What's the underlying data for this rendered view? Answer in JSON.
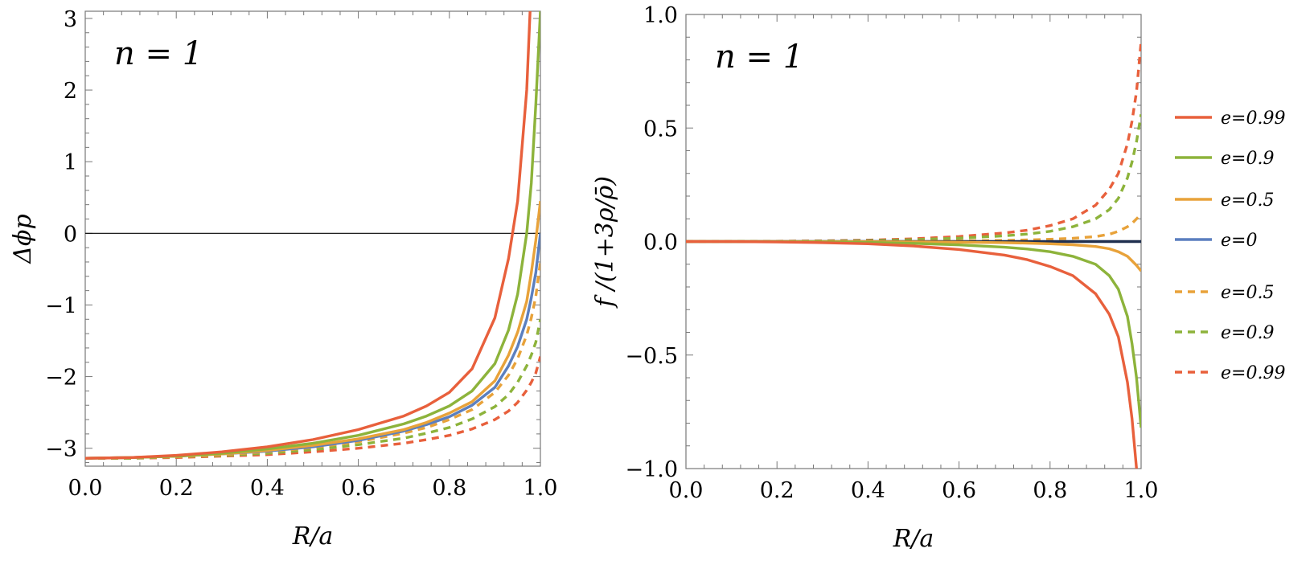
{
  "chart_data": [
    {
      "type": "line",
      "panel": "left",
      "annotation": "n = 1",
      "xlabel": "R/a",
      "ylabel": "Δϕp",
      "xlim": [
        0,
        1
      ],
      "ylim": [
        -3.25,
        3.1
      ],
      "x_ticks": [
        0,
        0.2,
        0.4,
        0.6,
        0.8,
        1.0
      ],
      "x_tick_labels": [
        "0.0",
        "0.2",
        "0.4",
        "0.6",
        "0.8",
        "1.0"
      ],
      "y_ticks": [
        -3,
        -2,
        -1,
        0,
        1,
        2,
        3
      ],
      "y_tick_labels": [
        "−3",
        "−2",
        "−1",
        "0",
        "1",
        "2",
        "3"
      ],
      "zero_line": true,
      "x": [
        0,
        0.1,
        0.2,
        0.3,
        0.4,
        0.5,
        0.6,
        0.7,
        0.75,
        0.8,
        0.85,
        0.9,
        0.93,
        0.95,
        0.97,
        0.98,
        0.99,
        1.0
      ],
      "series": [
        {
          "name": "e=0.99",
          "style": "solid",
          "color": "#e8603c",
          "values": [
            -3.14,
            -3.13,
            -3.1,
            -3.05,
            -2.98,
            -2.88,
            -2.74,
            -2.55,
            -2.41,
            -2.22,
            -1.89,
            -1.18,
            -0.35,
            0.45,
            2.0,
            3.5,
            null,
            null
          ]
        },
        {
          "name": "e=0.9",
          "style": "solid",
          "color": "#8db33b",
          "values": [
            -3.14,
            -3.13,
            -3.11,
            -3.07,
            -3.01,
            -2.93,
            -2.82,
            -2.66,
            -2.55,
            -2.41,
            -2.2,
            -1.82,
            -1.35,
            -0.85,
            0.0,
            0.7,
            1.8,
            3.1
          ]
        },
        {
          "name": "e=0.5",
          "style": "solid",
          "color": "#e8a23a",
          "values": [
            -3.14,
            -3.13,
            -3.11,
            -3.08,
            -3.03,
            -2.96,
            -2.87,
            -2.74,
            -2.64,
            -2.51,
            -2.35,
            -2.06,
            -1.7,
            -1.38,
            -0.95,
            -0.55,
            -0.1,
            0.45
          ]
        },
        {
          "name": "e=0",
          "style": "solid",
          "color": "#5b7fbf",
          "values": [
            -3.14,
            -3.13,
            -3.11,
            -3.08,
            -3.04,
            -2.98,
            -2.89,
            -2.76,
            -2.67,
            -2.56,
            -2.4,
            -2.15,
            -1.85,
            -1.58,
            -1.2,
            -0.9,
            -0.55,
            0.0
          ]
        },
        {
          "name": "e=0.5",
          "style": "dashed",
          "color": "#e8a23a",
          "values": [
            -3.14,
            -3.13,
            -3.12,
            -3.09,
            -3.05,
            -2.99,
            -2.91,
            -2.79,
            -2.71,
            -2.6,
            -2.46,
            -2.22,
            -1.98,
            -1.75,
            -1.42,
            -1.18,
            -0.88,
            -0.4
          ]
        },
        {
          "name": "e=0.9",
          "style": "dashed",
          "color": "#8db33b",
          "values": [
            -3.14,
            -3.14,
            -3.12,
            -3.1,
            -3.07,
            -3.02,
            -2.95,
            -2.86,
            -2.79,
            -2.71,
            -2.59,
            -2.42,
            -2.25,
            -2.08,
            -1.85,
            -1.7,
            -1.52,
            -1.2
          ]
        },
        {
          "name": "e=0.99",
          "style": "dashed",
          "color": "#e8603c",
          "values": [
            -3.14,
            -3.14,
            -3.13,
            -3.11,
            -3.09,
            -3.05,
            -3.0,
            -2.93,
            -2.88,
            -2.82,
            -2.73,
            -2.6,
            -2.48,
            -2.36,
            -2.19,
            -2.08,
            -1.95,
            -1.72
          ]
        }
      ]
    },
    {
      "type": "line",
      "panel": "right",
      "annotation": "n = 1",
      "xlabel": "R/a",
      "ylabel": "f /(1+3ρ/ρ̄)",
      "xlim": [
        0,
        1
      ],
      "ylim": [
        -1.0,
        1.0
      ],
      "x_ticks": [
        0,
        0.2,
        0.4,
        0.6,
        0.8,
        1.0
      ],
      "x_tick_labels": [
        "0.0",
        "0.2",
        "0.4",
        "0.6",
        "0.8",
        "1.0"
      ],
      "y_ticks": [
        -1.0,
        -0.5,
        0.0,
        0.5,
        1.0
      ],
      "y_tick_labels": [
        "−1.0",
        "−0.5",
        "0.0",
        "0.5",
        "1.0"
      ],
      "zero_line": true,
      "x": [
        0,
        0.1,
        0.2,
        0.3,
        0.4,
        0.5,
        0.6,
        0.7,
        0.75,
        0.8,
        0.85,
        0.9,
        0.93,
        0.95,
        0.97,
        0.98,
        0.99,
        1.0
      ],
      "series": [
        {
          "name": "e=0.99",
          "style": "solid",
          "color": "#e8603c",
          "values": [
            0,
            -0.0005,
            -0.002,
            -0.005,
            -0.01,
            -0.02,
            -0.035,
            -0.06,
            -0.08,
            -0.11,
            -0.15,
            -0.23,
            -0.32,
            -0.42,
            -0.62,
            -0.78,
            -1.0,
            null
          ]
        },
        {
          "name": "e=0.9",
          "style": "solid",
          "color": "#8db33b",
          "values": [
            0,
            -0.0002,
            -0.0008,
            -0.002,
            -0.004,
            -0.008,
            -0.015,
            -0.025,
            -0.033,
            -0.045,
            -0.065,
            -0.1,
            -0.15,
            -0.21,
            -0.33,
            -0.45,
            -0.6,
            -0.82
          ]
        },
        {
          "name": "e=0.5",
          "style": "solid",
          "color": "#e8a23a",
          "values": [
            0,
            0,
            -0.0001,
            -0.0003,
            -0.0007,
            -0.0015,
            -0.003,
            -0.005,
            -0.007,
            -0.01,
            -0.014,
            -0.022,
            -0.032,
            -0.045,
            -0.065,
            -0.085,
            -0.105,
            -0.13
          ]
        },
        {
          "name": "e=0",
          "style": "solid",
          "color": "#1f2f4f",
          "values": [
            0,
            0,
            0,
            0,
            0,
            0,
            0,
            0,
            0,
            0,
            0,
            0,
            0,
            0,
            0,
            0,
            0,
            0
          ]
        },
        {
          "name": "e=0.5",
          "style": "dashed",
          "color": "#e8a23a",
          "values": [
            0,
            0,
            0.0001,
            0.0003,
            0.0007,
            0.0015,
            0.003,
            0.005,
            0.007,
            0.01,
            0.014,
            0.022,
            0.032,
            0.045,
            0.065,
            0.08,
            0.1,
            0.12
          ]
        },
        {
          "name": "e=0.9",
          "style": "dashed",
          "color": "#8db33b",
          "values": [
            0,
            0.0002,
            0.0008,
            0.002,
            0.004,
            0.008,
            0.015,
            0.025,
            0.033,
            0.045,
            0.065,
            0.1,
            0.14,
            0.19,
            0.28,
            0.35,
            0.44,
            0.56
          ]
        },
        {
          "name": "e=0.99",
          "style": "dashed",
          "color": "#e8603c",
          "values": [
            0,
            0.0003,
            0.001,
            0.003,
            0.006,
            0.012,
            0.022,
            0.038,
            0.05,
            0.07,
            0.1,
            0.16,
            0.23,
            0.3,
            0.43,
            0.53,
            0.66,
            0.88
          ]
        }
      ]
    }
  ],
  "legend": {
    "placement": "right",
    "entries": [
      {
        "label": "e=0.99",
        "style": "solid",
        "color": "#e8603c"
      },
      {
        "label": "e=0.9",
        "style": "solid",
        "color": "#8db33b"
      },
      {
        "label": "e=0.5",
        "style": "solid",
        "color": "#e8a23a"
      },
      {
        "label": "e=0",
        "style": "solid",
        "color": "#5b7fbf"
      },
      {
        "label": "e=0.5",
        "style": "dashed",
        "color": "#e8a23a"
      },
      {
        "label": "e=0.9",
        "style": "dashed",
        "color": "#8db33b"
      },
      {
        "label": "e=0.99",
        "style": "dashed",
        "color": "#e8603c"
      }
    ]
  }
}
